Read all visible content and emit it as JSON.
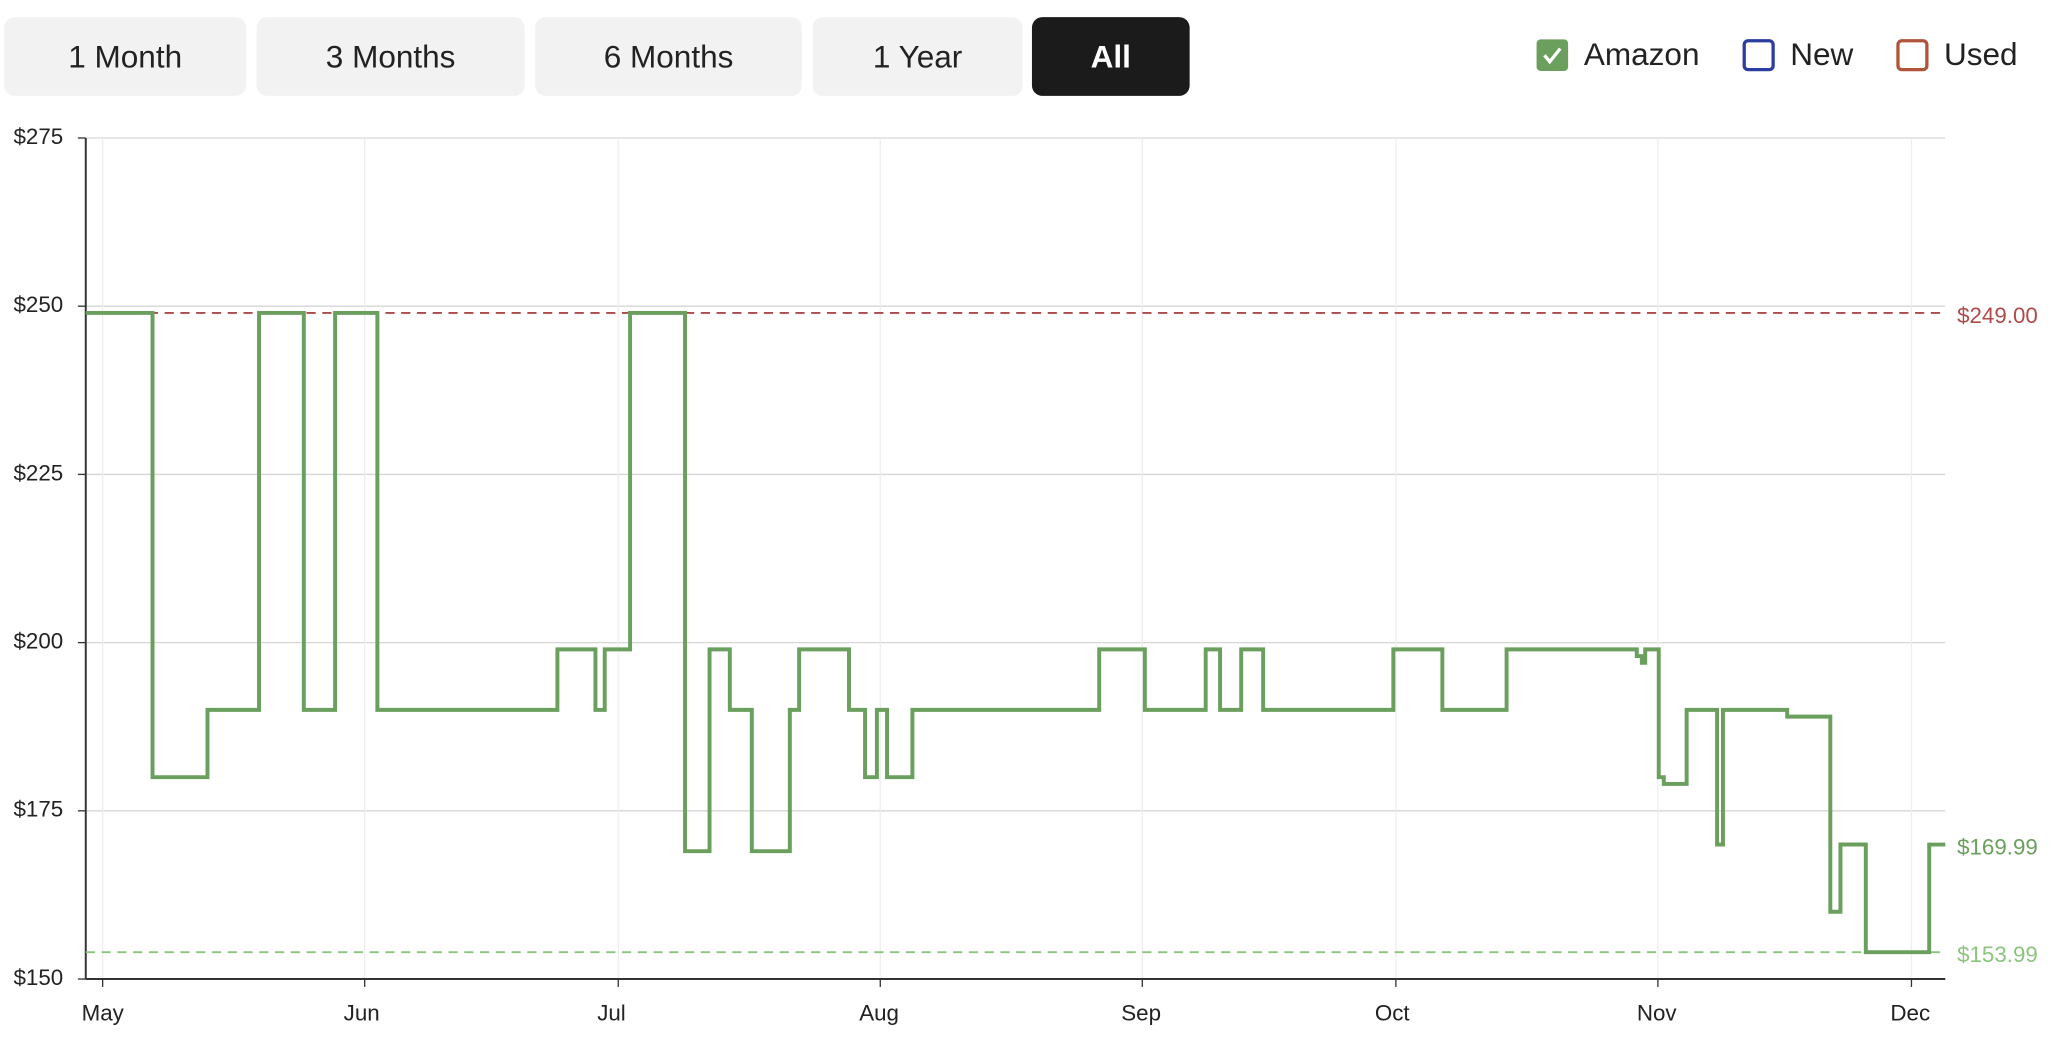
{
  "ranges": [
    "1 Month",
    "3 Months",
    "6 Months",
    "1 Year",
    "All"
  ],
  "active_range": 4,
  "chart_data": {
    "type": "step",
    "series": [
      {
        "name": "Amazon",
        "color": "#6a9f5e",
        "checked": true,
        "x": [
          -2,
          5.9,
          12.4,
          18.5,
          23.8,
          27.5,
          32.5,
          53.8,
          58.3,
          59.4,
          62.4,
          68.9,
          71.8,
          74.2,
          76.8,
          81.3,
          82.4,
          88.3,
          90.2,
          91.6,
          92.8,
          95.8,
          117.9,
          123.3,
          130.5,
          132.2,
          134.7,
          137.3,
          152.7,
          158.5,
          166.1,
          181.5,
          182.1,
          182.5,
          184.1,
          184.7,
          187.4,
          191,
          191.7,
          199.3,
          204.4,
          205.6,
          208.6,
          216.1,
          218
        ],
        "values": [
          249,
          180,
          190,
          249,
          190,
          249,
          190,
          199,
          190,
          199,
          249,
          169,
          199,
          190,
          169,
          190,
          199,
          190,
          180,
          190,
          180,
          190,
          199,
          190,
          199,
          190,
          199,
          190,
          199,
          190,
          199,
          198,
          197,
          199,
          180,
          179,
          190,
          170,
          190,
          189,
          160,
          170,
          153.99,
          169.99,
          169.99
        ]
      }
    ],
    "other_legend": [
      {
        "name": "New",
        "color": "#2a3ea0"
      },
      {
        "name": "Used",
        "color": "#b0553a"
      }
    ],
    "xlim": [
      -2,
      218
    ],
    "xticks": [
      {
        "value": 0,
        "label": "May"
      },
      {
        "value": 31,
        "label": "Jun"
      },
      {
        "value": 61,
        "label": "Jul"
      },
      {
        "value": 92,
        "label": "Aug"
      },
      {
        "value": 123,
        "label": "Sep"
      },
      {
        "value": 153,
        "label": "Oct"
      },
      {
        "value": 184,
        "label": "Nov"
      },
      {
        "value": 214,
        "label": "Dec"
      }
    ],
    "ylim": [
      150,
      275
    ],
    "yticks": [
      {
        "value": 150,
        "label": "$150"
      },
      {
        "value": 175,
        "label": "$175"
      },
      {
        "value": 200,
        "label": "$200"
      },
      {
        "value": 225,
        "label": "$225"
      },
      {
        "value": 250,
        "label": "$250"
      },
      {
        "value": 275,
        "label": "$275"
      }
    ],
    "grid": true,
    "annotations": [
      {
        "value": 249,
        "label": "$249.00",
        "color": "#b04a4a",
        "dashed": true
      },
      {
        "value": 169.99,
        "label": "$169.99",
        "color": "#6a9f5e",
        "dashed": false
      },
      {
        "value": 153.99,
        "label": "$153.99",
        "color": "#8cc47e",
        "dashed": true
      }
    ]
  }
}
